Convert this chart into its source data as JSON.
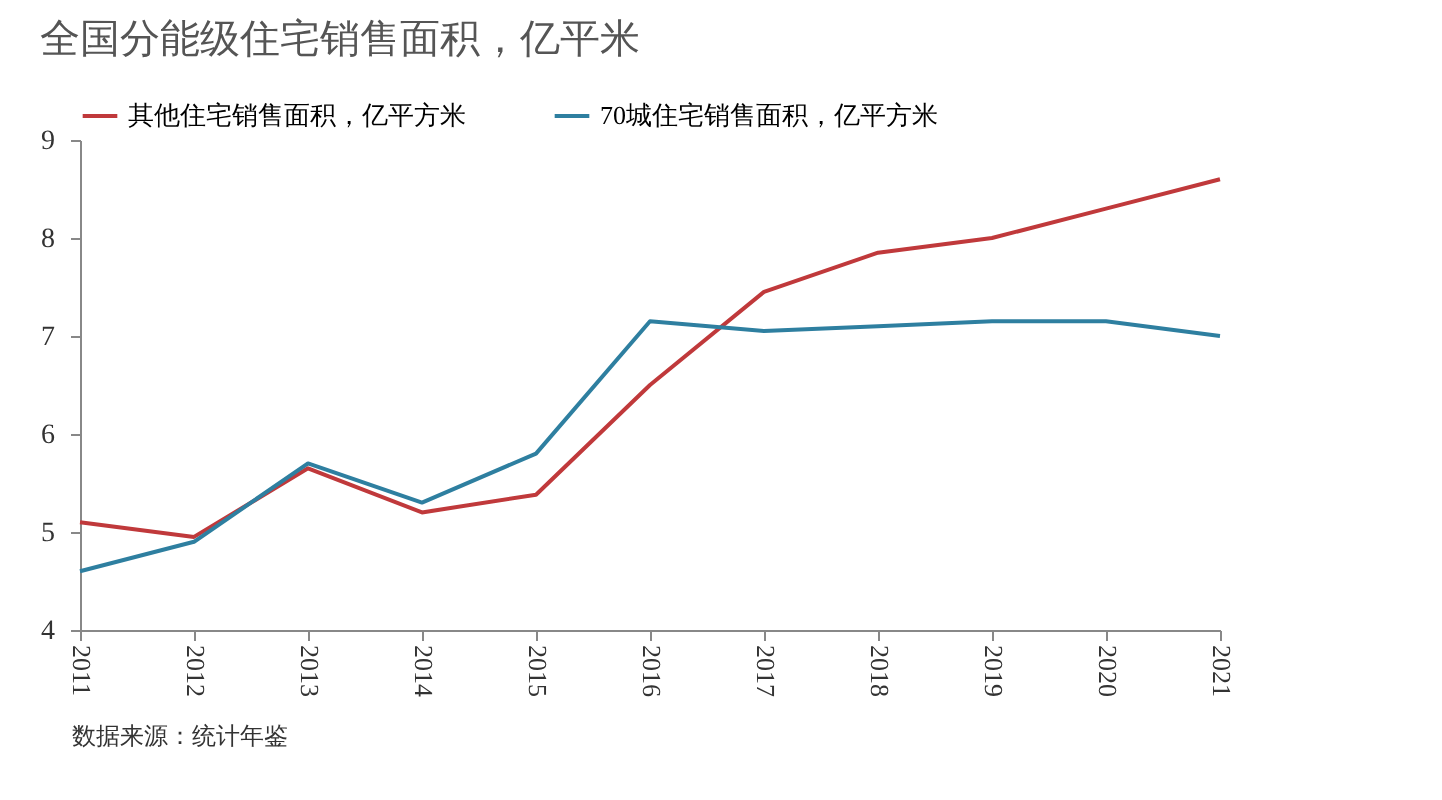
{
  "chart_data": {
    "type": "line",
    "title": "全国分能级住宅销售面积，亿平米",
    "categories": [
      "2011",
      "2012",
      "2013",
      "2014",
      "2015",
      "2016",
      "2017",
      "2018",
      "2019",
      "2020",
      "2021"
    ],
    "series": [
      {
        "name": "其他住宅销售面积，亿平方米",
        "color": "#c0393b",
        "values": [
          5.1,
          4.95,
          5.65,
          5.2,
          5.38,
          6.5,
          7.45,
          7.85,
          8.0,
          8.3,
          8.6
        ]
      },
      {
        "name": "70城住宅销售面积，亿平方米",
        "color": "#2e7fa0",
        "values": [
          4.6,
          4.9,
          5.7,
          5.3,
          5.8,
          7.15,
          7.05,
          7.1,
          7.15,
          7.15,
          7.0
        ]
      }
    ],
    "ylim": [
      4,
      9
    ],
    "yticks": [
      4,
      5,
      6,
      7,
      8,
      9
    ],
    "grid": false,
    "legend": "top",
    "marker": "none",
    "line_style": "solid",
    "annotations": [
      "数据来源：统计年鉴"
    ]
  }
}
